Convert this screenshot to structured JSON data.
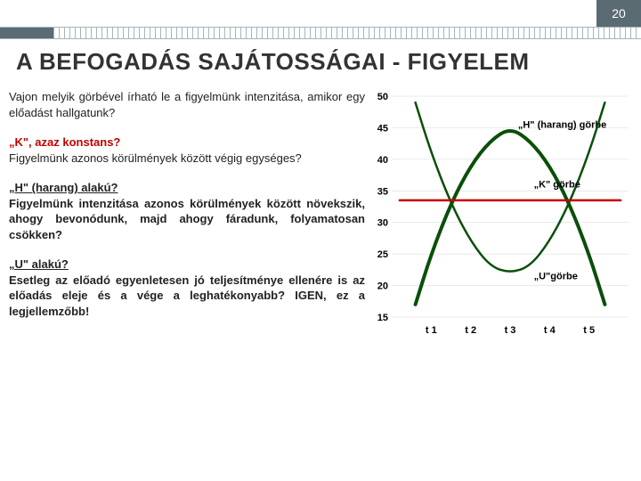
{
  "page_number": "20",
  "title": "A BEFOGADÁS SAJÁTOSSÁGAI - FIGYELEM",
  "paragraphs": {
    "intro": "Vajon melyik görbével írható le a figyelmünk intenzitása, amikor egy előadást hallgatunk?",
    "k_heading": "„K\", azaz konstans?",
    "k_body": "Figyelmünk azonos körülmények között végig egységes?",
    "h_heading": "„H\" (harang) alakú?",
    "h_body": "Figyelmünk intenzitása azonos körülmények között növekszik, ahogy bevonódunk, majd ahogy fáradunk, folyamatosan csökken?",
    "u_heading": "„U\" alakú?",
    "u_body_pre": "Esetleg az előadó egyenletesen jó teljesítménye ellenére is az előadás eleje és a vége a leghatékonyabb? ",
    "u_body_bold": "IGEN, ez a legjellemzőbb!"
  },
  "chart": {
    "type": "line",
    "xlim": [
      0,
      6
    ],
    "ylim": [
      15,
      50
    ],
    "ytick_step": 5,
    "yticks": [
      15,
      20,
      25,
      30,
      35,
      40,
      45,
      50
    ],
    "xticks": [
      "t 1",
      "t 2",
      "t 3",
      "t 4",
      "t 5"
    ],
    "background_color": "#ffffff",
    "grid_color": "#d6d6d6",
    "curves": {
      "H": {
        "label": "„H\" (harang) görbe",
        "color": "#0a4f0a",
        "width": 4,
        "label_pos": [
          3.2,
          45
        ],
        "points": [
          [
            0.6,
            17
          ],
          [
            1.0,
            25
          ],
          [
            1.5,
            33
          ],
          [
            2.0,
            39
          ],
          [
            2.5,
            43
          ],
          [
            3.0,
            45
          ],
          [
            3.5,
            43
          ],
          [
            4.0,
            39
          ],
          [
            4.5,
            33
          ],
          [
            5.0,
            25
          ],
          [
            5.4,
            17
          ]
        ]
      },
      "K": {
        "label": "„K\" görbe",
        "color": "#c00000",
        "width": 2.5,
        "label_pos": [
          3.6,
          35.5
        ],
        "points": [
          [
            0.2,
            33.5
          ],
          [
            5.8,
            33.5
          ]
        ]
      },
      "U": {
        "label": "„U\"görbe",
        "color": "#0a4f0a",
        "width": 2.5,
        "label_pos": [
          3.6,
          21
        ],
        "points": [
          [
            0.6,
            49
          ],
          [
            1.0,
            41
          ],
          [
            1.5,
            33
          ],
          [
            2.0,
            27
          ],
          [
            2.5,
            23
          ],
          [
            3.0,
            22
          ],
          [
            3.5,
            23
          ],
          [
            4.0,
            27
          ],
          [
            4.5,
            33
          ],
          [
            5.0,
            41
          ],
          [
            5.4,
            49
          ]
        ]
      }
    }
  }
}
